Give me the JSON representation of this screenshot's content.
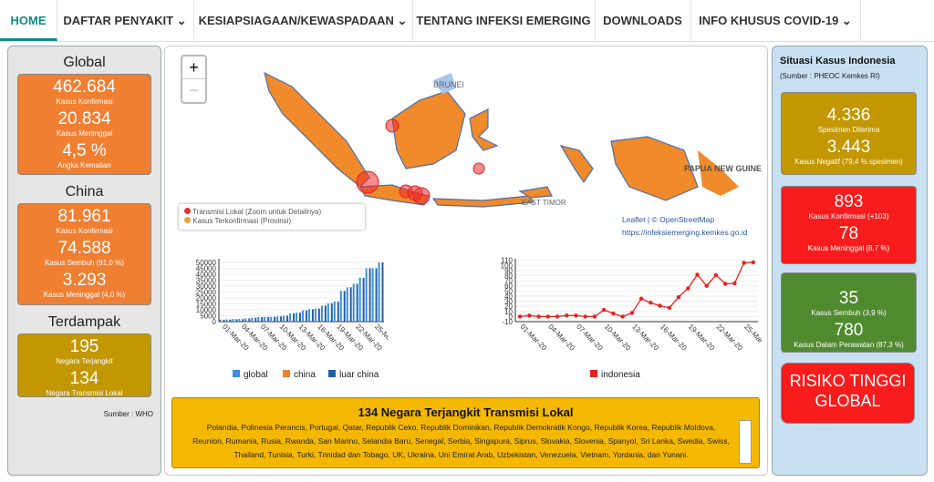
{
  "nav": [
    "HOME",
    "DAFTAR PENYAKIT",
    "KESIAPSIAGAAN/KEWASPADAAN",
    "TENTANG INFEKSI EMERGING",
    "DOWNLOADS",
    "INFO KHUSUS COVID-19"
  ],
  "left": {
    "global": {
      "title": "Global",
      "items": [
        [
          "462.684",
          "Kasus Konfirmasi"
        ],
        [
          "20.834",
          "Kasus Meninggal"
        ],
        [
          "4,5 %",
          "Angka Kematian"
        ]
      ]
    },
    "china": {
      "title": "China",
      "items": [
        [
          "81.961",
          "Kasus Konfirmasi"
        ],
        [
          "74.588",
          "Kasus Sembuh (91,0 %)"
        ],
        [
          "3.293",
          "Kasus Meninggal (4,0 %)"
        ]
      ]
    },
    "terdampak": {
      "title": "Terdampak",
      "items": [
        [
          "195",
          "Negara Terjangkit"
        ],
        [
          "134",
          "Negara Transmisi Lokal"
        ]
      ]
    },
    "source": "Sumber : WHO"
  },
  "map": {
    "labels": [
      "BRUNEI",
      "PAPUA NEW GUINEA",
      "EAST TIMOR"
    ],
    "legend": [
      "Transmisi Lokal (Zoom untuk Detailnya)",
      "Kasus Terkonfirmasi (Provinsi)"
    ],
    "attribution": "Leaflet | © OpenStreetMap",
    "url": "https://infeksiemerging.kemkes.go.id",
    "zoom": [
      "+",
      "−"
    ]
  },
  "chart_data": [
    {
      "type": "bar",
      "categories": [
        "01-Mar-20",
        null,
        null,
        "04-Mar-20",
        null,
        null,
        "07-Mar-20",
        null,
        null,
        "10-Mar-20",
        null,
        null,
        "13-Mar-20",
        null,
        null,
        "16-Mar-20",
        null,
        null,
        "19-Mar-20",
        null,
        null,
        "22-Mar-20",
        null,
        null,
        "25-Mar-20",
        null
      ],
      "series": [
        {
          "name": "global",
          "color": "#3a8ee0",
          "values": [
            1800,
            1900,
            2200,
            2300,
            2800,
            3400,
            3800,
            4000,
            4100,
            4500,
            5000,
            7000,
            7500,
            9500,
            10500,
            11000,
            13500,
            15500,
            17000,
            26000,
            29000,
            32000,
            37000,
            45000,
            45000,
            50000
          ]
        },
        {
          "name": "china",
          "color": "#f08030",
          "values": [
            200,
            120,
            140,
            120,
            100,
            100,
            45,
            40,
            20,
            20,
            15,
            10,
            10,
            20,
            25,
            20,
            15,
            30,
            40,
            45,
            40,
            50,
            80,
            70,
            60,
            65
          ]
        },
        {
          "name": "luar china",
          "color": "#1f5fa8",
          "values": [
            1600,
            1780,
            2060,
            2180,
            2700,
            3300,
            3750,
            3960,
            4080,
            4480,
            4980,
            6990,
            7490,
            9480,
            10470,
            10980,
            13480,
            15470,
            16960,
            25950,
            28960,
            31950,
            36920,
            44930,
            44940,
            49930
          ]
        }
      ],
      "ylim": [
        0,
        53000
      ],
      "yticks": [
        0,
        5000,
        10000,
        15000,
        20000,
        25000,
        30000,
        35000,
        40000,
        45000,
        50000
      ],
      "grid": true
    },
    {
      "type": "line",
      "categories": [
        "01-Mar-20",
        null,
        null,
        "04-Mar-20",
        null,
        null,
        "07-Mar-20",
        null,
        null,
        "10-Mar-20",
        null,
        null,
        "13-Mar-20",
        null,
        null,
        "16-Mar-20",
        null,
        null,
        "19-Mar-20",
        null,
        null,
        "22-Mar-20",
        null,
        null,
        "25-Mar-20",
        null
      ],
      "series": [
        {
          "name": "indonesia",
          "color": "#e8201e",
          "values": [
            0,
            2,
            0,
            0,
            0,
            2,
            2,
            0,
            0,
            13,
            6,
            0,
            7,
            35,
            27,
            21,
            17,
            38,
            55,
            82,
            60,
            81,
            64,
            65,
            105,
            106
          ]
        }
      ],
      "ylim": [
        -10,
        113
      ],
      "yticks": [
        -10,
        0,
        10,
        20,
        30,
        40,
        50,
        60,
        70,
        80,
        90,
        100,
        110
      ],
      "grid": true
    }
  ],
  "bottom": {
    "title": "134 Negara Terjangkit Transmisi Lokal",
    "text": "Polandia, Polinesia Perancis, Portugal, Qatar, Republik Ceko, Republik Dominikan, Republik Demokratik Kongo, Republik Korea, Republik Moldova, Reunion, Rumania, Rusia, Rwanda, San Marino, Selandia Baru, Senegal, Serbia, Singapura, Siprus, Slovakia, Slovenia, Spanyol, Sri Lanka, Swedia, Swiss, Thailand, Tunisia, Turki, Trinidad dan Tobago, UK, Ukraina, Uni Emirat Arab, Uzbekistan, Venezuela, Vietnam, Yordania, dan Yunani."
  },
  "right": {
    "title": "Situasi Kasus Indonesia",
    "source": "(Sumber : PHEOC Kemkes RI)",
    "spesimen": [
      [
        "4.336",
        "Spesimen Diterima"
      ],
      [
        "3.443",
        "Kasus Negatif (79,4 % spesimen)"
      ]
    ],
    "kasus": [
      [
        "893",
        "Kasus Konfirmasi (+103)"
      ],
      [
        "78",
        "Kasus Meninggal (8,7 %)"
      ]
    ],
    "sembuh": [
      [
        "35",
        "Kasus Sembuh (3,9 %)"
      ],
      [
        "780",
        "Kasus Dalam Perawatan (87,3 %)"
      ]
    ],
    "risk": "RISIKO TINGGI GLOBAL"
  }
}
